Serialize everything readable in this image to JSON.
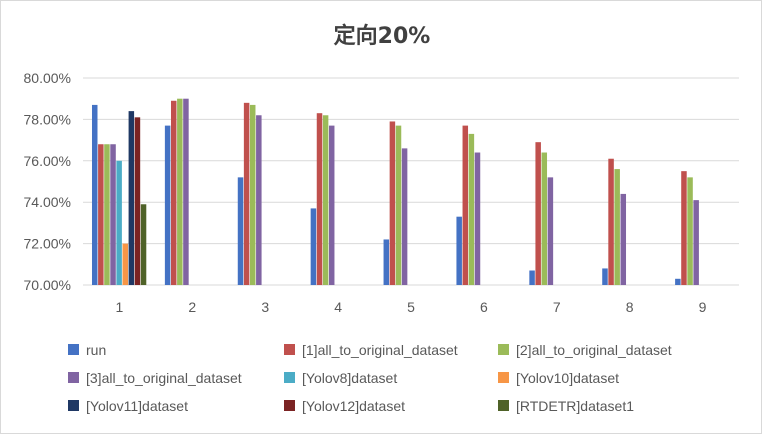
{
  "chart_data": {
    "type": "bar",
    "title": "定向20%",
    "xlabel": "",
    "ylabel": "",
    "ylim": [
      70,
      80
    ],
    "y_ticks": [
      "70.00%",
      "72.00%",
      "74.00%",
      "76.00%",
      "78.00%",
      "80.00%"
    ],
    "y_tick_values": [
      70,
      72,
      74,
      76,
      78,
      80
    ],
    "grid": true,
    "legend_position": "bottom",
    "categories": [
      "1",
      "2",
      "3",
      "4",
      "5",
      "6",
      "7",
      "8",
      "9"
    ],
    "series": [
      {
        "name": "run",
        "color": "#4472C4",
        "values": [
          78.7,
          77.7,
          75.2,
          73.7,
          72.2,
          73.3,
          70.7,
          70.8,
          70.3
        ]
      },
      {
        "name": "[1]all_to_original_dataset",
        "color": "#C0504D",
        "values": [
          76.8,
          78.9,
          78.8,
          78.3,
          77.9,
          77.7,
          76.9,
          76.1,
          75.5
        ]
      },
      {
        "name": "[2]all_to_original_dataset",
        "color": "#9BBB59",
        "values": [
          76.8,
          79.0,
          78.7,
          78.2,
          77.7,
          77.3,
          76.4,
          75.6,
          75.2
        ]
      },
      {
        "name": "[3]all_to_original_dataset",
        "color": "#8064A2",
        "values": [
          76.8,
          79.0,
          78.2,
          77.7,
          76.6,
          76.4,
          75.2,
          74.4,
          74.1
        ]
      },
      {
        "name": "[Yolov8]dataset",
        "color": "#4BACC6",
        "values": [
          76.0,
          null,
          null,
          null,
          null,
          null,
          null,
          null,
          null
        ]
      },
      {
        "name": "[Yolov10]dataset",
        "color": "#F79646",
        "values": [
          72.0,
          null,
          null,
          null,
          null,
          null,
          null,
          null,
          null
        ]
      },
      {
        "name": "[Yolov11]dataset",
        "color": "#1F3864",
        "values": [
          78.4,
          null,
          null,
          null,
          null,
          null,
          null,
          null,
          null
        ]
      },
      {
        "name": "[Yolov12]dataset",
        "color": "#7B2323",
        "values": [
          78.1,
          null,
          null,
          null,
          null,
          null,
          null,
          null,
          null
        ]
      },
      {
        "name": "[RTDETR]dataset1",
        "color": "#4F6228",
        "values": [
          73.9,
          null,
          null,
          null,
          null,
          null,
          null,
          null,
          null
        ]
      }
    ]
  },
  "colors": {
    "grid": "#d9d9d9",
    "text": "#595959",
    "title": "#404040"
  }
}
